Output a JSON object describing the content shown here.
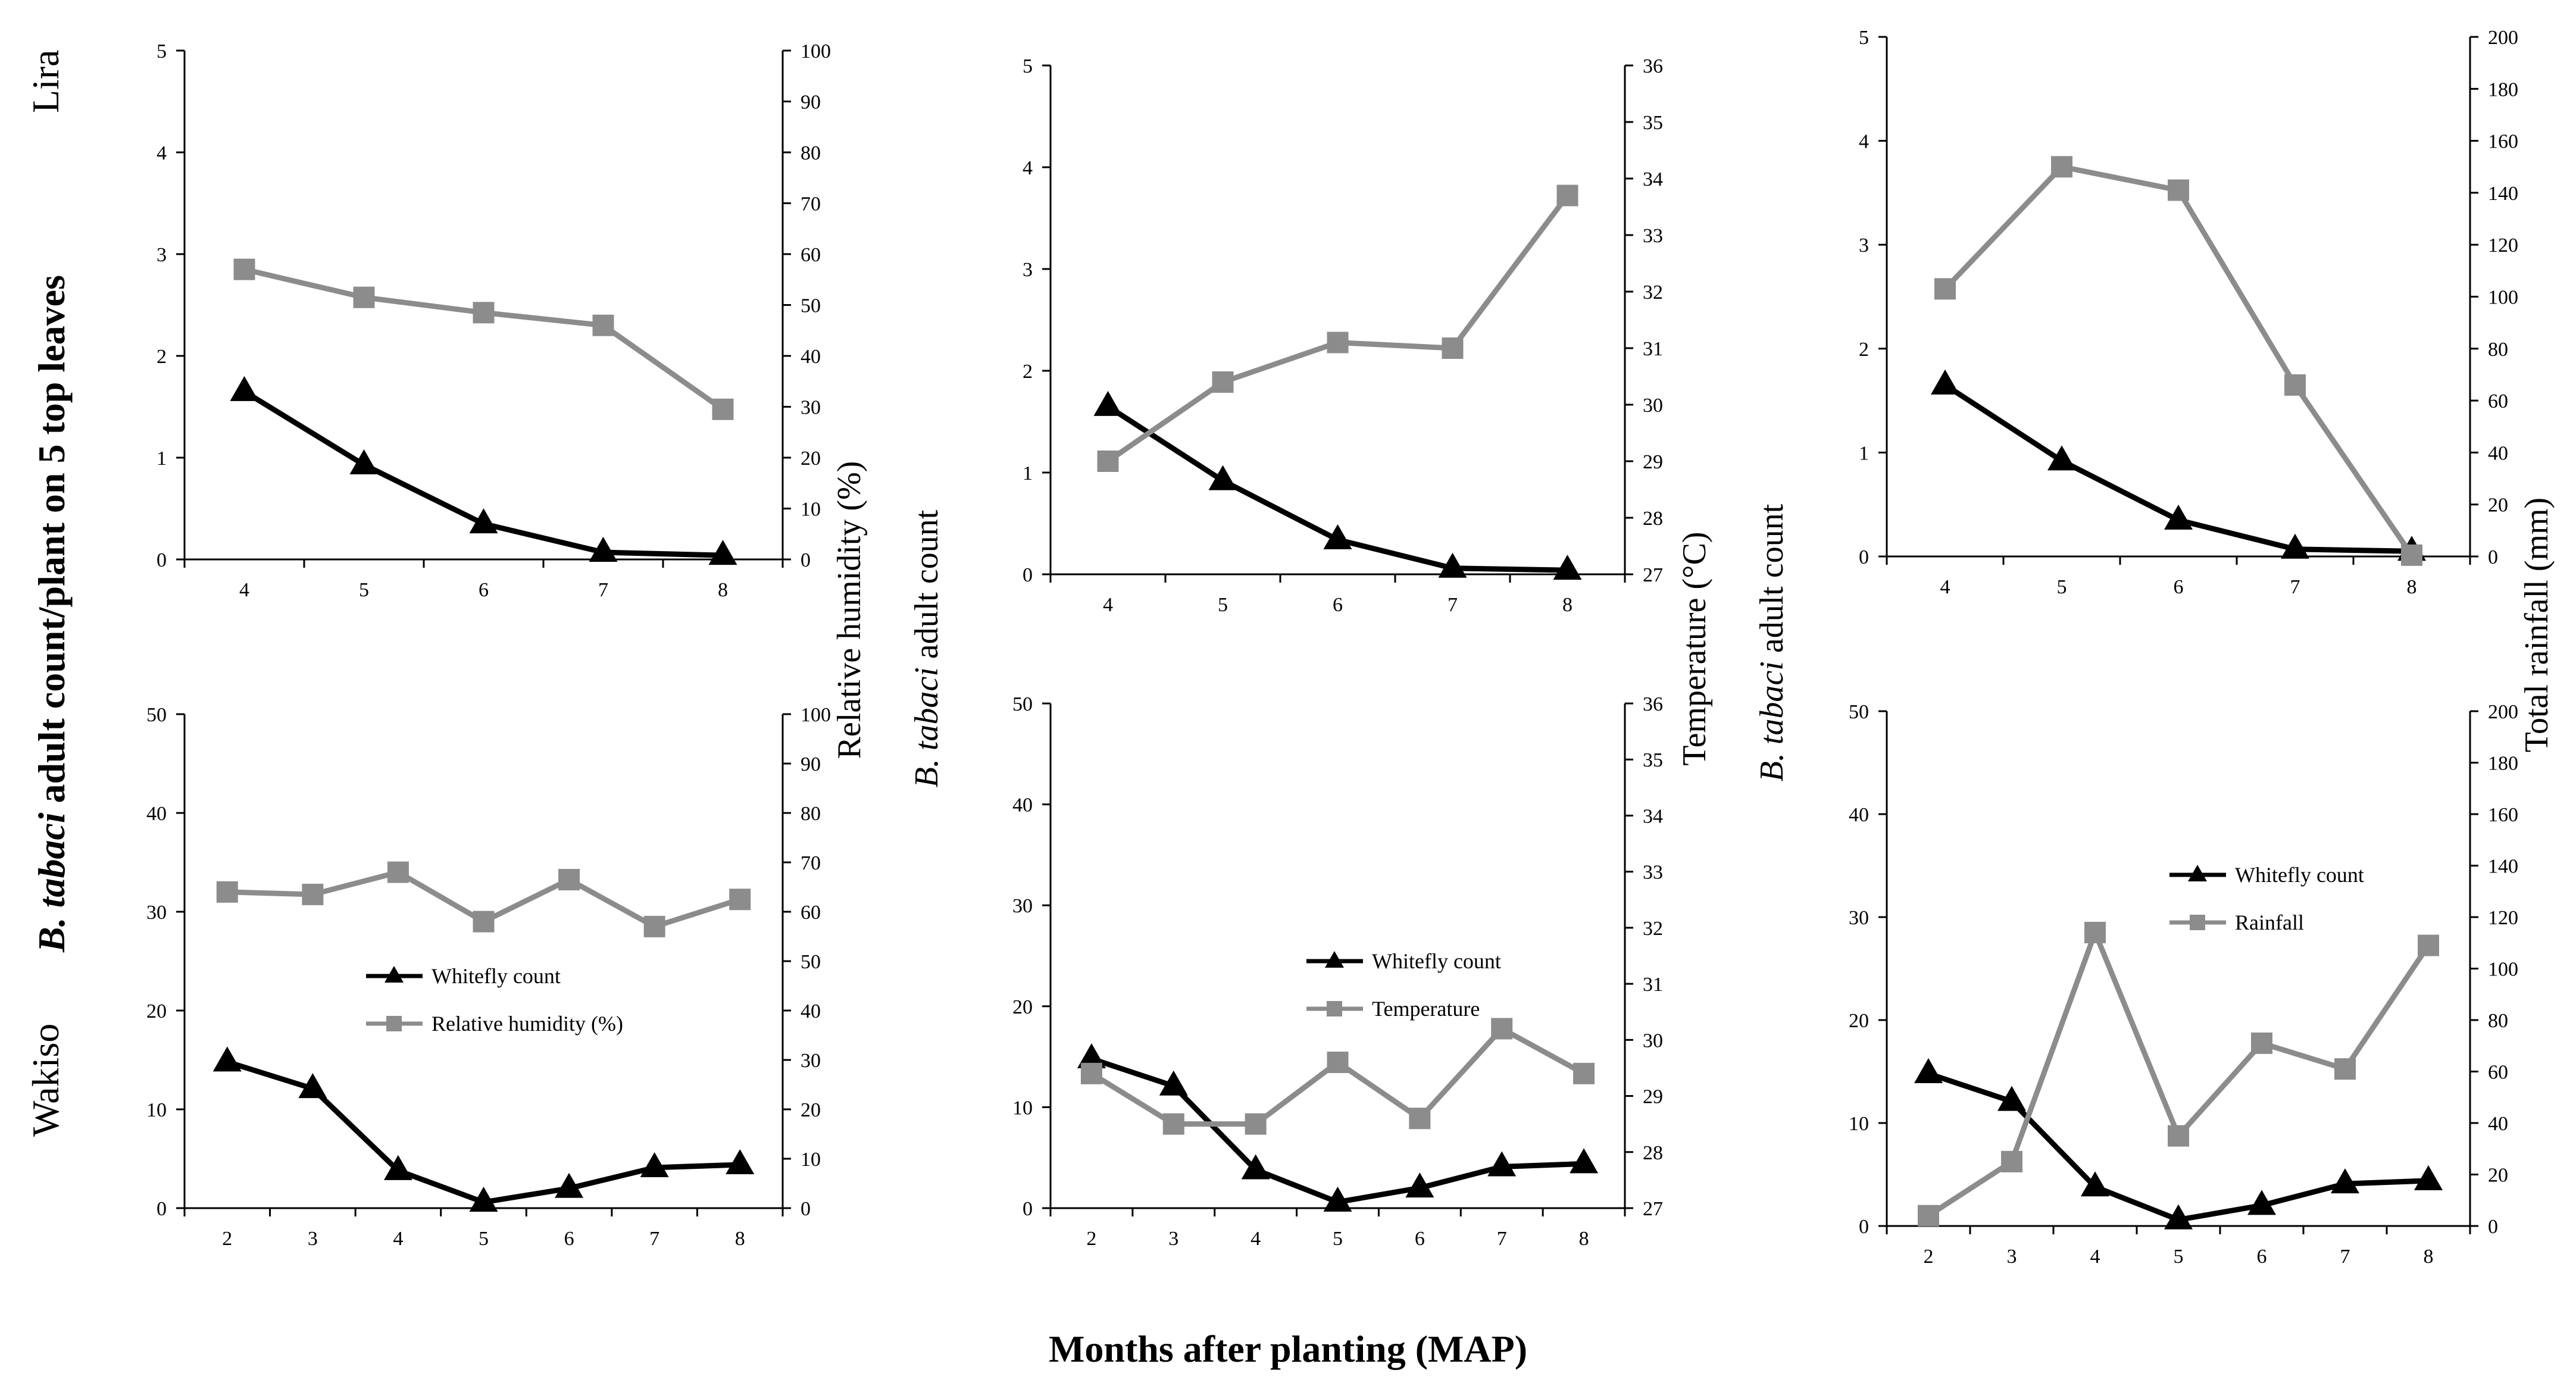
{
  "row_labels": {
    "top": "Lira",
    "bottom": "Wakiso"
  },
  "global_y_label": {
    "species": "B. tabaci",
    "rest": " adult  count/plant on 5 top leaves"
  },
  "global_x_label": "Months after planting (MAP)",
  "colors": {
    "whitefly": "#000000",
    "environment": "#8c8c8c",
    "axis": "#000000"
  },
  "chart_data": [
    {
      "id": "lira-humidity",
      "type": "line",
      "x": [
        4,
        5,
        6,
        7,
        8
      ],
      "ylim": [
        0,
        5
      ],
      "yticks": [
        0,
        1,
        2,
        3,
        4,
        5
      ],
      "y2lim": [
        0,
        100
      ],
      "y2ticks": [
        0,
        10,
        20,
        30,
        40,
        50,
        60,
        70,
        80,
        90,
        100
      ],
      "y2label": "Relative humidity  (%)",
      "ylabel_species": "",
      "ylabel_rest": "",
      "legend": [],
      "legend_position": "",
      "series": [
        {
          "values": [
            1.65,
            0.93,
            0.35,
            0.07,
            0.04
          ],
          "axis": "left",
          "marker": "triangle"
        },
        {
          "values": [
            57,
            51.5,
            48.5,
            46,
            29.5
          ],
          "axis": "right",
          "marker": "square"
        }
      ]
    },
    {
      "id": "lira-temperature",
      "type": "line",
      "x": [
        4,
        5,
        6,
        7,
        8
      ],
      "ylim": [
        0,
        5
      ],
      "yticks": [
        0,
        1,
        2,
        3,
        4,
        5
      ],
      "y2lim": [
        27,
        36
      ],
      "y2ticks": [
        27,
        28,
        29,
        30,
        31,
        32,
        33,
        34,
        35,
        36
      ],
      "y2label": "Temperature  (°C)",
      "ylabel_species": "B. tabaci",
      "ylabel_rest": " adult  count",
      "legend": [],
      "legend_position": "",
      "series": [
        {
          "values": [
            1.65,
            0.92,
            0.34,
            0.06,
            0.04
          ],
          "axis": "left",
          "marker": "triangle"
        },
        {
          "values": [
            29,
            30.4,
            31.1,
            31,
            33.7
          ],
          "axis": "right",
          "marker": "square"
        }
      ]
    },
    {
      "id": "lira-rainfall",
      "type": "line",
      "x": [
        4,
        5,
        6,
        7,
        8
      ],
      "ylim": [
        0,
        5
      ],
      "yticks": [
        0,
        1,
        2,
        3,
        4,
        5
      ],
      "y2lim": [
        0,
        200
      ],
      "y2ticks": [
        0,
        20,
        40,
        60,
        80,
        100,
        120,
        140,
        160,
        180,
        200
      ],
      "y2label": "Total rainfall  (mm)",
      "ylabel_species": "B. tabaci",
      "ylabel_rest": " adult  count",
      "legend": [],
      "legend_position": "",
      "series": [
        {
          "values": [
            1.65,
            0.92,
            0.35,
            0.07,
            0.05
          ],
          "axis": "left",
          "marker": "triangle"
        },
        {
          "values": [
            103,
            150,
            141,
            66,
            0.5
          ],
          "axis": "right",
          "marker": "square"
        }
      ]
    },
    {
      "id": "wakiso-humidity",
      "type": "line",
      "x": [
        2,
        3,
        4,
        5,
        6,
        7,
        8
      ],
      "ylim": [
        0,
        50
      ],
      "yticks": [
        0,
        10,
        20,
        30,
        40,
        50
      ],
      "y2lim": [
        0,
        100
      ],
      "y2ticks": [
        0,
        10,
        20,
        30,
        40,
        50,
        60,
        70,
        80,
        90,
        100
      ],
      "y2label": "",
      "ylabel_species": "",
      "ylabel_rest": "",
      "legend": [
        "Whitefly count",
        "Relative humidity (%)"
      ],
      "legend_position": "center",
      "series": [
        {
          "values": [
            14.8,
            12.1,
            3.8,
            0.6,
            2,
            4.1,
            4.4
          ],
          "axis": "left",
          "marker": "triangle"
        },
        {
          "values": [
            64,
            63.5,
            68,
            58,
            66.5,
            57,
            62.5
          ],
          "axis": "right",
          "marker": "square"
        }
      ]
    },
    {
      "id": "wakiso-temperature",
      "type": "line",
      "x": [
        2,
        3,
        4,
        5,
        6,
        7,
        8
      ],
      "ylim": [
        0,
        50
      ],
      "yticks": [
        0,
        10,
        20,
        30,
        40,
        50
      ],
      "y2lim": [
        27,
        36
      ],
      "y2ticks": [
        27,
        28,
        29,
        30,
        31,
        32,
        33,
        34,
        35,
        36
      ],
      "y2label": "",
      "ylabel_species": "",
      "ylabel_rest": "",
      "legend": [
        "Whitefly count",
        "Temperature"
      ],
      "legend_position": "center",
      "series": [
        {
          "values": [
            14.8,
            12.1,
            3.8,
            0.6,
            2,
            4.1,
            4.4
          ],
          "axis": "left",
          "marker": "triangle"
        },
        {
          "values": [
            29.4,
            28.5,
            28.5,
            29.6,
            28.6,
            30.2,
            29.4
          ],
          "axis": "right",
          "marker": "square"
        }
      ]
    },
    {
      "id": "wakiso-rainfall",
      "type": "line",
      "x": [
        2,
        3,
        4,
        5,
        6,
        7,
        8
      ],
      "ylim": [
        0,
        50
      ],
      "yticks": [
        0,
        10,
        20,
        30,
        40,
        50
      ],
      "y2lim": [
        0,
        200
      ],
      "y2ticks": [
        0,
        20,
        40,
        60,
        80,
        100,
        120,
        140,
        160,
        180,
        200
      ],
      "y2label": "",
      "ylabel_species": "",
      "ylabel_rest": "",
      "legend": [
        "Whitefly count",
        "Rainfall"
      ],
      "legend_position": "center",
      "series": [
        {
          "values": [
            14.8,
            12.1,
            3.8,
            0.6,
            2,
            4.1,
            4.4
          ],
          "axis": "left",
          "marker": "triangle"
        },
        {
          "values": [
            4,
            25,
            114,
            35,
            71,
            61,
            109
          ],
          "axis": "right",
          "marker": "square"
        }
      ]
    }
  ]
}
